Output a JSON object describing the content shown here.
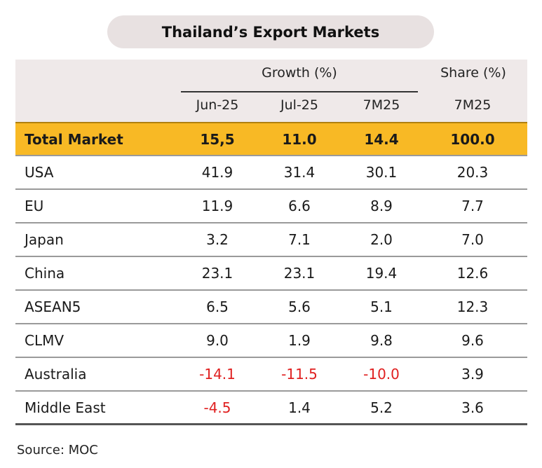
{
  "title": "Thailand’s Export Markets",
  "header": {
    "growth_group": "Growth (%)",
    "share_group": "Share (%)",
    "growth_cols": [
      "Jun-25",
      "Jul-25",
      "7M25"
    ],
    "share_col": "7M25"
  },
  "rows": [
    {
      "label": "Total Market",
      "values": [
        "15,5",
        "11.0",
        "14.4",
        "100.0"
      ]
    },
    {
      "label": "USA",
      "values": [
        "41.9",
        "31.4",
        "30.1",
        "20.3"
      ]
    },
    {
      "label": "EU",
      "values": [
        "11.9",
        "6.6",
        "8.9",
        "7.7"
      ]
    },
    {
      "label": "Japan",
      "values": [
        "3.2",
        "7.1",
        "2.0",
        "7.0"
      ]
    },
    {
      "label": "China",
      "values": [
        "23.1",
        "23.1",
        "19.4",
        "12.6"
      ]
    },
    {
      "label": "ASEAN5",
      "values": [
        "6.5",
        "5.6",
        "5.1",
        "12.3"
      ]
    },
    {
      "label": "CLMV",
      "values": [
        "9.0",
        "1.9",
        "9.8",
        "9.6"
      ]
    },
    {
      "label": "Australia",
      "values": [
        "-14.1",
        "-11.5",
        "-10.0",
        "3.9"
      ]
    },
    {
      "label": "Middle East",
      "values": [
        "-4.5",
        "1.4",
        "5.2",
        "3.6"
      ]
    }
  ],
  "colors": {
    "total_row": "#f8b925",
    "negative": "#e02020",
    "header_bg": "#efe9e9",
    "title_bg": "#e8e1e1"
  },
  "source": "Source: MOC"
}
